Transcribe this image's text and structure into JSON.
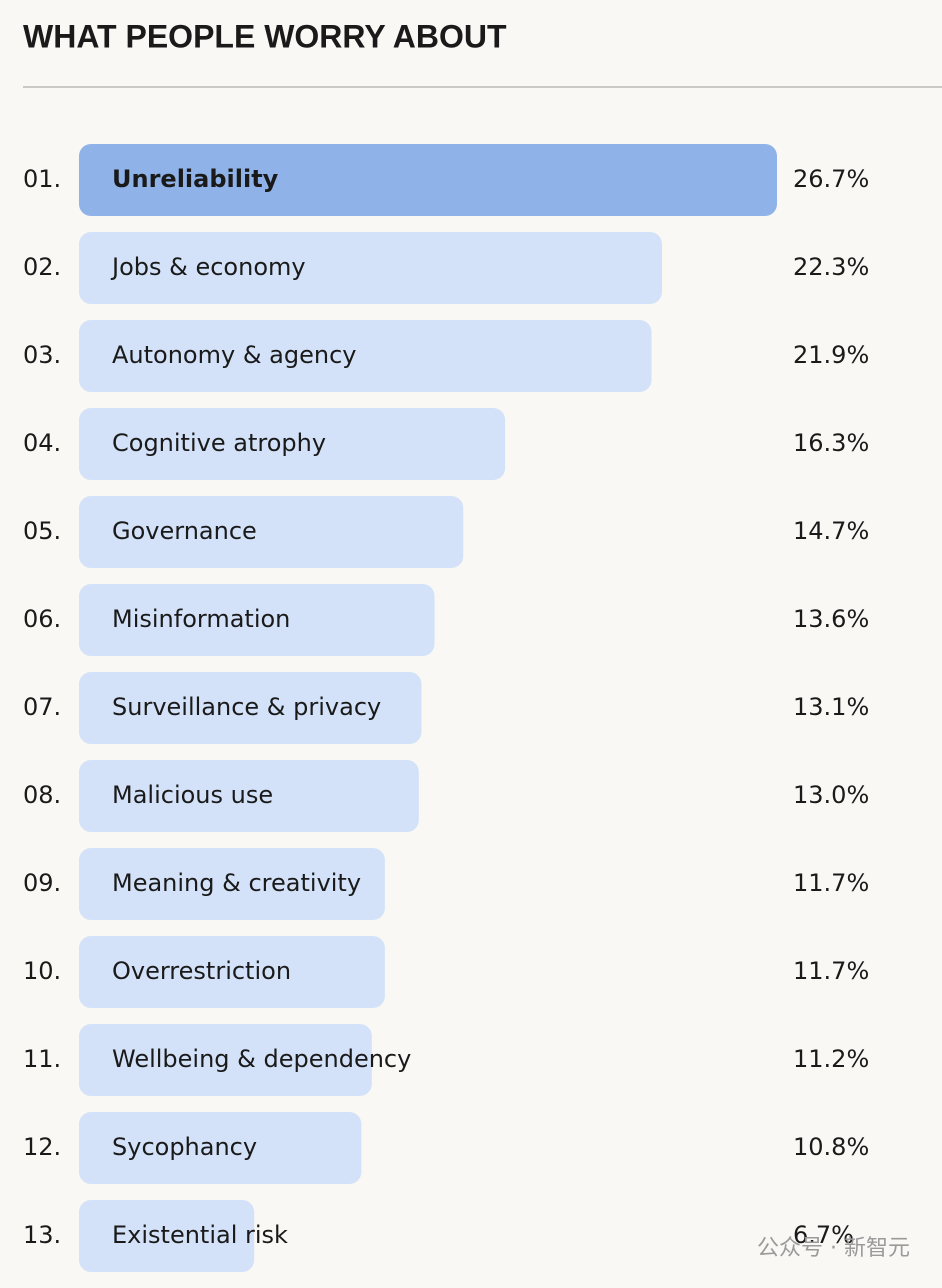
{
  "chart_data": {
    "type": "hbar",
    "title": "WHAT PEOPLE WORRY ABOUT",
    "ranks": [
      "01.",
      "02.",
      "03.",
      "04.",
      "05.",
      "06.",
      "07.",
      "08.",
      "09.",
      "10.",
      "11.",
      "12.",
      "13."
    ],
    "categories": [
      "Unreliability",
      "Jobs & economy",
      "Autonomy & agency",
      "Cognitive atrophy",
      "Governance",
      "Misinformation",
      "Surveillance & privacy",
      "Malicious use",
      "Meaning & creativity",
      "Overrestriction",
      "Wellbeing & dependency",
      "Sycophancy",
      "Existential risk"
    ],
    "values": [
      26.7,
      22.3,
      21.9,
      16.3,
      14.7,
      13.6,
      13.1,
      13.0,
      11.7,
      11.7,
      11.2,
      10.8,
      6.7
    ],
    "value_labels": [
      "26.7%",
      "22.3%",
      "21.9%",
      "16.3%",
      "14.7%",
      "13.6%",
      "13.1%",
      "13.0%",
      "11.7%",
      "11.7%",
      "11.2%",
      "10.8%",
      "6.7%"
    ],
    "colors": [
      "#8fb3e8",
      "#d3e2f8",
      "#d3e2f8",
      "#d3e2f8",
      "#d3e2f8",
      "#d3e2f8",
      "#d3e2f8",
      "#d3e2f8",
      "#d3e2f8",
      "#d3e2f8",
      "#d3e2f8",
      "#d3e2f8",
      "#d3e2f8"
    ]
  },
  "watermark": "公众号 · 新智元"
}
